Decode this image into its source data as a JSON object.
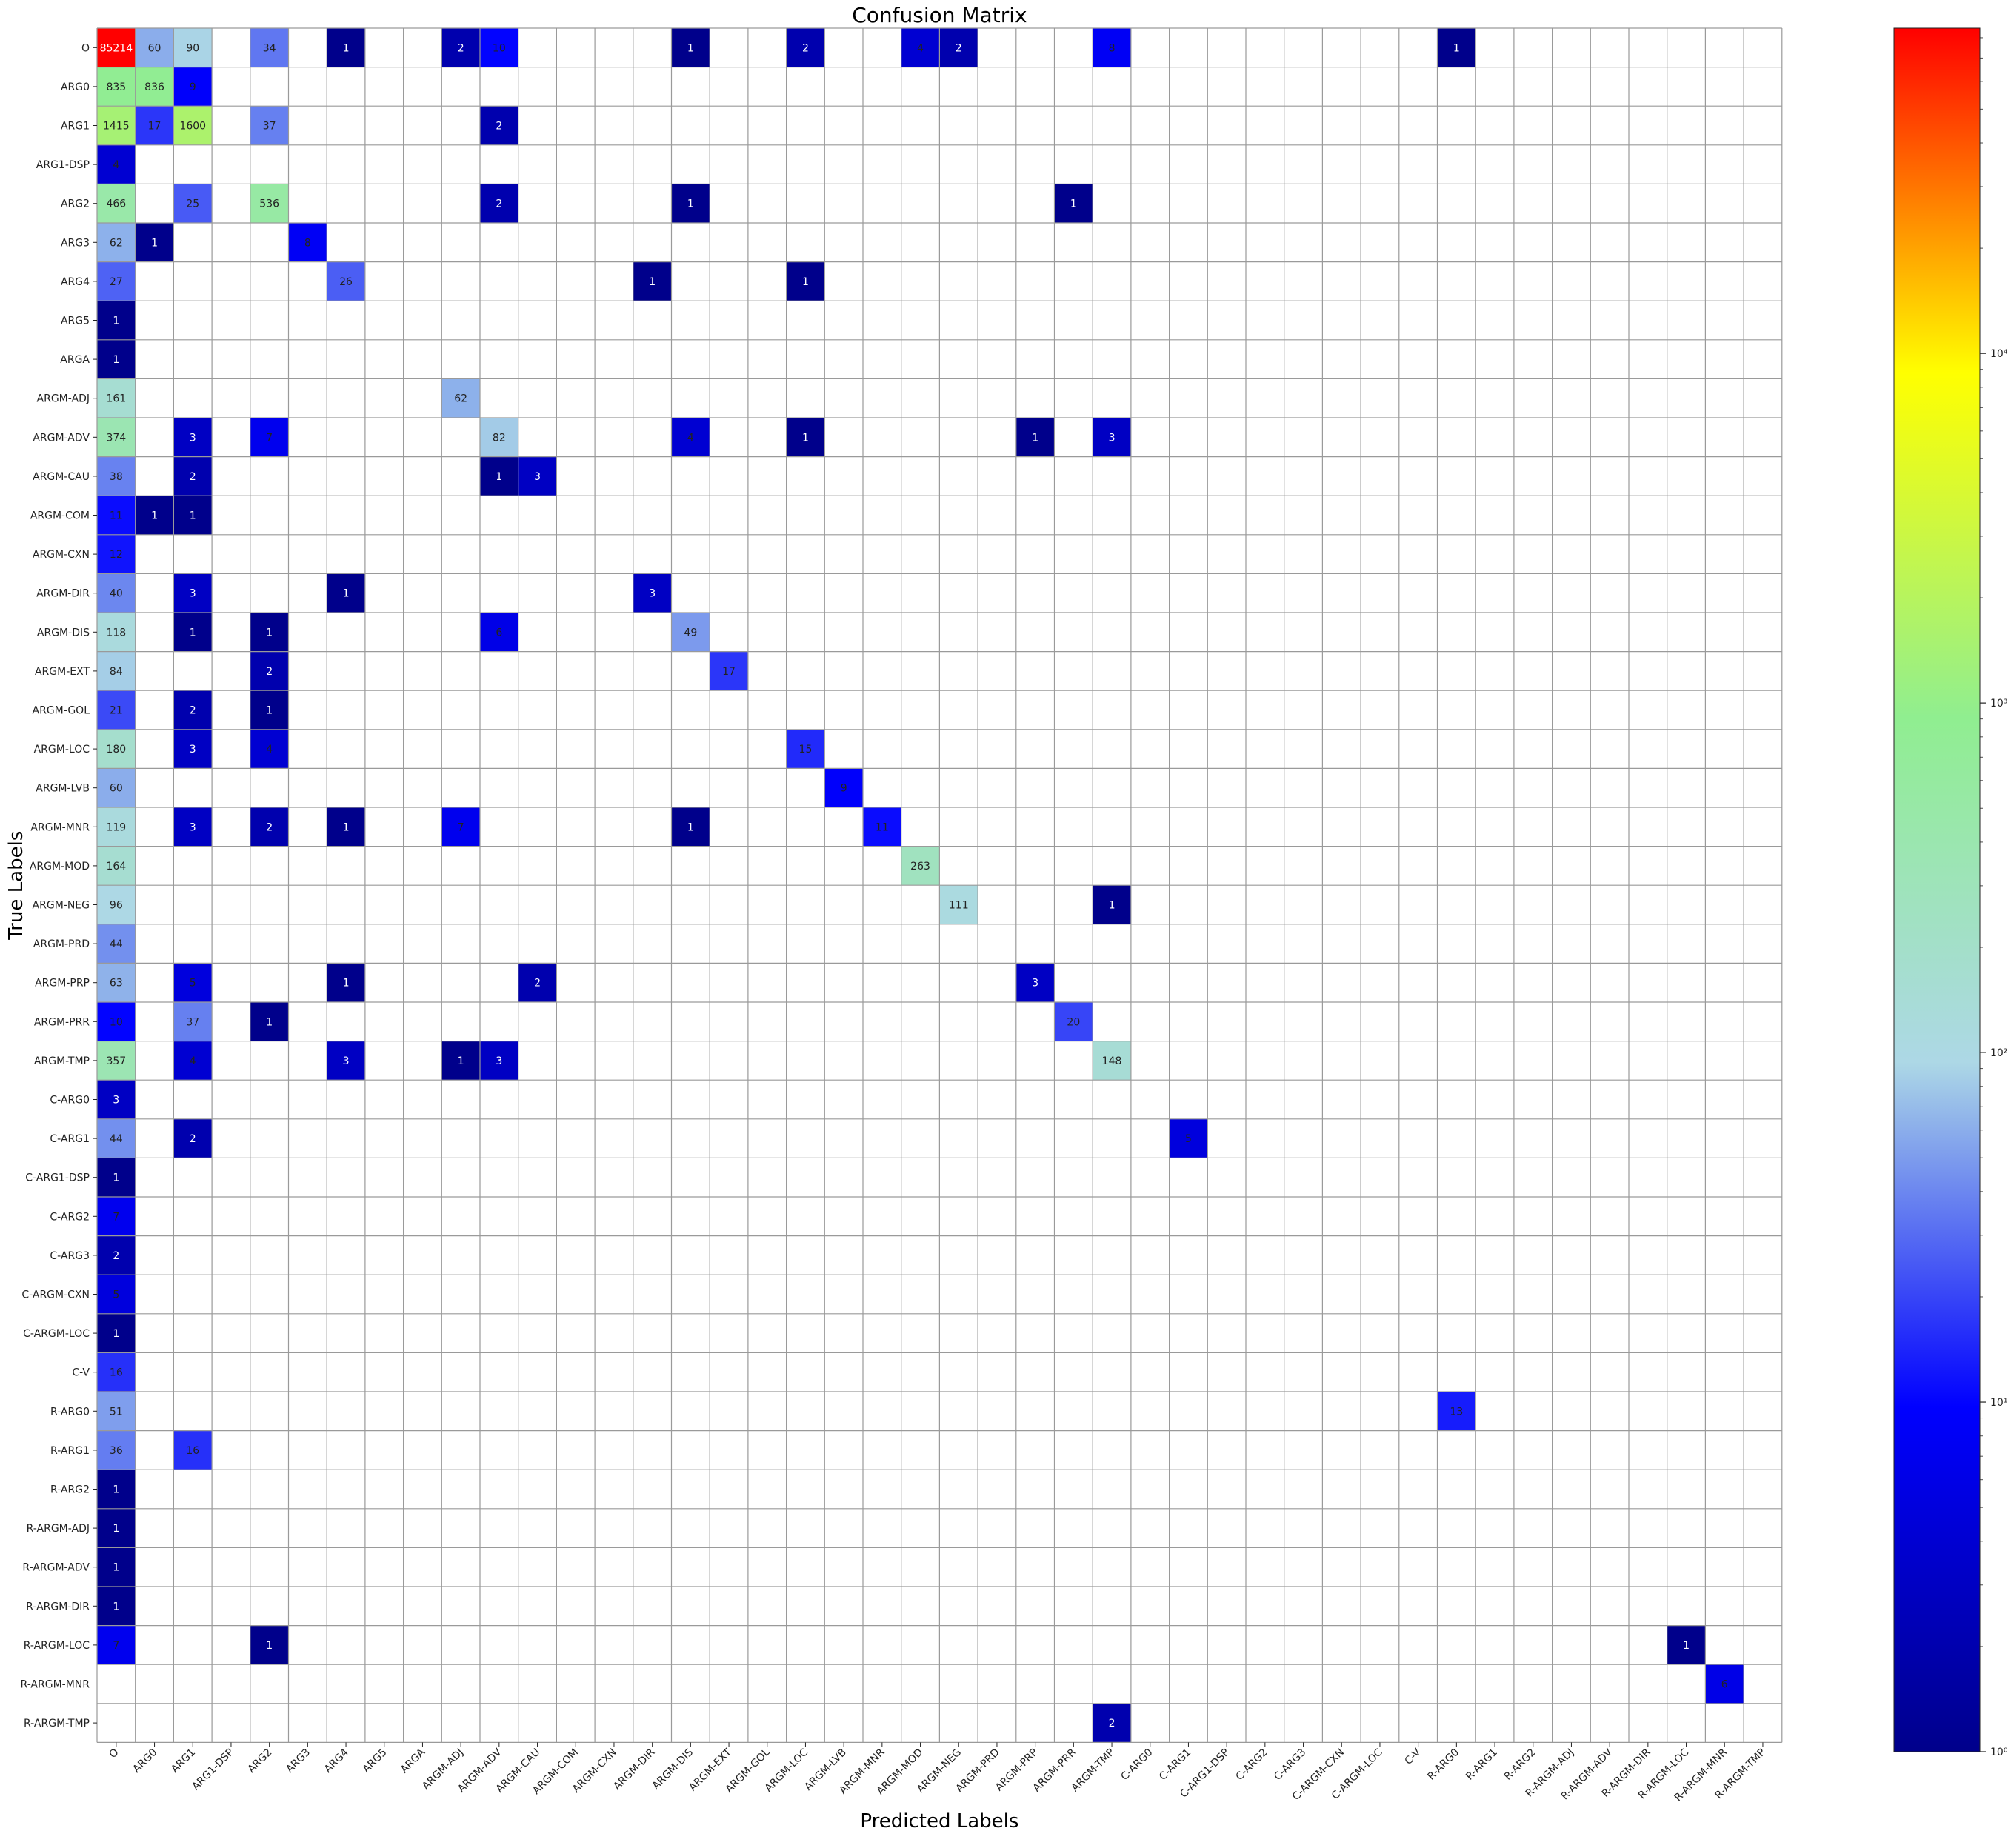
{
  "chart_data": {
    "type": "heatmap",
    "title": "Confusion Matrix",
    "xlabel": "Predicted Labels",
    "ylabel": "True Labels",
    "x_labels": [
      "O",
      "ARG0",
      "ARG1",
      "ARG1-DSP",
      "ARG2",
      "ARG3",
      "ARG4",
      "ARG5",
      "ARGA",
      "ARGM-ADJ",
      "ARGM-ADV",
      "ARGM-CAU",
      "ARGM-COM",
      "ARGM-CXN",
      "ARGM-DIR",
      "ARGM-DIS",
      "ARGM-EXT",
      "ARGM-GOL",
      "ARGM-LOC",
      "ARGM-LVB",
      "ARGM-MNR",
      "ARGM-MOD",
      "ARGM-NEG",
      "ARGM-PRD",
      "ARGM-PRP",
      "ARGM-PRR",
      "ARGM-TMP",
      "C-ARG0",
      "C-ARG1",
      "C-ARG1-DSP",
      "C-ARG2",
      "C-ARG3",
      "C-ARGM-CXN",
      "C-ARGM-LOC",
      "C-V",
      "R-ARG0",
      "R-ARG1",
      "R-ARG2",
      "R-ARGM-ADJ",
      "R-ARGM-ADV",
      "R-ARGM-DIR",
      "R-ARGM-LOC",
      "R-ARGM-MNR",
      "R-ARGM-TMP"
    ],
    "y_labels": [
      "O",
      "ARG0",
      "ARG1",
      "ARG1-DSP",
      "ARG2",
      "ARG3",
      "ARG4",
      "ARG5",
      "ARGA",
      "ARGM-ADJ",
      "ARGM-ADV",
      "ARGM-CAU",
      "ARGM-COM",
      "ARGM-CXN",
      "ARGM-DIR",
      "ARGM-DIS",
      "ARGM-EXT",
      "ARGM-GOL",
      "ARGM-LOC",
      "ARGM-LVB",
      "ARGM-MNR",
      "ARGM-MOD",
      "ARGM-NEG",
      "ARGM-PRD",
      "ARGM-PRP",
      "ARGM-PRR",
      "ARGM-TMP",
      "C-ARG0",
      "C-ARG1",
      "C-ARG1-DSP",
      "C-ARG2",
      "C-ARG3",
      "C-ARGM-CXN",
      "C-ARGM-LOC",
      "C-V",
      "R-ARG0",
      "R-ARG1",
      "R-ARG2",
      "R-ARGM-ADJ",
      "R-ARGM-ADV",
      "R-ARGM-DIR",
      "R-ARGM-LOC",
      "R-ARGM-MNR",
      "R-ARGM-TMP"
    ],
    "cells": [
      {
        "row": "O",
        "col": "O",
        "value": 85214
      },
      {
        "row": "O",
        "col": "ARG0",
        "value": 60
      },
      {
        "row": "O",
        "col": "ARG1",
        "value": 90
      },
      {
        "row": "O",
        "col": "ARG2",
        "value": 34
      },
      {
        "row": "O",
        "col": "ARG4",
        "value": 1
      },
      {
        "row": "O",
        "col": "ARGM-ADJ",
        "value": 2
      },
      {
        "row": "O",
        "col": "ARGM-ADV",
        "value": 10
      },
      {
        "row": "O",
        "col": "ARGM-DIS",
        "value": 1
      },
      {
        "row": "O",
        "col": "ARGM-LOC",
        "value": 2
      },
      {
        "row": "O",
        "col": "ARGM-MOD",
        "value": 4
      },
      {
        "row": "O",
        "col": "ARGM-NEG",
        "value": 2
      },
      {
        "row": "O",
        "col": "ARGM-TMP",
        "value": 8
      },
      {
        "row": "O",
        "col": "R-ARG0",
        "value": 1
      },
      {
        "row": "ARG0",
        "col": "O",
        "value": 835
      },
      {
        "row": "ARG0",
        "col": "ARG0",
        "value": 836
      },
      {
        "row": "ARG0",
        "col": "ARG1",
        "value": 9
      },
      {
        "row": "ARG1",
        "col": "O",
        "value": 1415
      },
      {
        "row": "ARG1",
        "col": "ARG0",
        "value": 17
      },
      {
        "row": "ARG1",
        "col": "ARG1",
        "value": 1600
      },
      {
        "row": "ARG1",
        "col": "ARG2",
        "value": 37
      },
      {
        "row": "ARG1",
        "col": "ARGM-ADV",
        "value": 2
      },
      {
        "row": "ARG1-DSP",
        "col": "O",
        "value": 4
      },
      {
        "row": "ARG2",
        "col": "O",
        "value": 466
      },
      {
        "row": "ARG2",
        "col": "ARG1",
        "value": 25
      },
      {
        "row": "ARG2",
        "col": "ARG2",
        "value": 536
      },
      {
        "row": "ARG2",
        "col": "ARGM-ADV",
        "value": 2
      },
      {
        "row": "ARG2",
        "col": "ARGM-DIS",
        "value": 1
      },
      {
        "row": "ARG2",
        "col": "ARGM-PRR",
        "value": 1
      },
      {
        "row": "ARG3",
        "col": "O",
        "value": 62
      },
      {
        "row": "ARG3",
        "col": "ARG0",
        "value": 1
      },
      {
        "row": "ARG3",
        "col": "ARG3",
        "value": 8
      },
      {
        "row": "ARG4",
        "col": "O",
        "value": 27
      },
      {
        "row": "ARG4",
        "col": "ARG4",
        "value": 26
      },
      {
        "row": "ARG4",
        "col": "ARGM-DIR",
        "value": 1
      },
      {
        "row": "ARG4",
        "col": "ARGM-LOC",
        "value": 1
      },
      {
        "row": "ARG5",
        "col": "O",
        "value": 1
      },
      {
        "row": "ARGA",
        "col": "O",
        "value": 1
      },
      {
        "row": "ARGM-ADJ",
        "col": "O",
        "value": 161
      },
      {
        "row": "ARGM-ADJ",
        "col": "ARGM-ADJ",
        "value": 62
      },
      {
        "row": "ARGM-ADV",
        "col": "O",
        "value": 374
      },
      {
        "row": "ARGM-ADV",
        "col": "ARG1",
        "value": 3
      },
      {
        "row": "ARGM-ADV",
        "col": "ARG2",
        "value": 7
      },
      {
        "row": "ARGM-ADV",
        "col": "ARGM-ADV",
        "value": 82
      },
      {
        "row": "ARGM-ADV",
        "col": "ARGM-DIS",
        "value": 4
      },
      {
        "row": "ARGM-ADV",
        "col": "ARGM-LOC",
        "value": 1
      },
      {
        "row": "ARGM-ADV",
        "col": "ARGM-PRP",
        "value": 1
      },
      {
        "row": "ARGM-ADV",
        "col": "ARGM-TMP",
        "value": 3
      },
      {
        "row": "ARGM-CAU",
        "col": "O",
        "value": 38
      },
      {
        "row": "ARGM-CAU",
        "col": "ARG1",
        "value": 2
      },
      {
        "row": "ARGM-CAU",
        "col": "ARGM-ADV",
        "value": 1
      },
      {
        "row": "ARGM-CAU",
        "col": "ARGM-CAU",
        "value": 3
      },
      {
        "row": "ARGM-COM",
        "col": "O",
        "value": 11
      },
      {
        "row": "ARGM-COM",
        "col": "ARG0",
        "value": 1
      },
      {
        "row": "ARGM-COM",
        "col": "ARG1",
        "value": 1
      },
      {
        "row": "ARGM-CXN",
        "col": "O",
        "value": 12
      },
      {
        "row": "ARGM-DIR",
        "col": "O",
        "value": 40
      },
      {
        "row": "ARGM-DIR",
        "col": "ARG1",
        "value": 3
      },
      {
        "row": "ARGM-DIR",
        "col": "ARG4",
        "value": 1
      },
      {
        "row": "ARGM-DIR",
        "col": "ARGM-DIR",
        "value": 3
      },
      {
        "row": "ARGM-DIS",
        "col": "O",
        "value": 118
      },
      {
        "row": "ARGM-DIS",
        "col": "ARG1",
        "value": 1
      },
      {
        "row": "ARGM-DIS",
        "col": "ARG2",
        "value": 1
      },
      {
        "row": "ARGM-DIS",
        "col": "ARGM-ADV",
        "value": 6
      },
      {
        "row": "ARGM-DIS",
        "col": "ARGM-DIS",
        "value": 49
      },
      {
        "row": "ARGM-EXT",
        "col": "O",
        "value": 84
      },
      {
        "row": "ARGM-EXT",
        "col": "ARG2",
        "value": 2
      },
      {
        "row": "ARGM-EXT",
        "col": "ARGM-EXT",
        "value": 17
      },
      {
        "row": "ARGM-GOL",
        "col": "O",
        "value": 21
      },
      {
        "row": "ARGM-GOL",
        "col": "ARG1",
        "value": 2
      },
      {
        "row": "ARGM-GOL",
        "col": "ARG2",
        "value": 1
      },
      {
        "row": "ARGM-LOC",
        "col": "O",
        "value": 180
      },
      {
        "row": "ARGM-LOC",
        "col": "ARG1",
        "value": 3
      },
      {
        "row": "ARGM-LOC",
        "col": "ARG2",
        "value": 4
      },
      {
        "row": "ARGM-LOC",
        "col": "ARGM-LOC",
        "value": 15
      },
      {
        "row": "ARGM-LVB",
        "col": "O",
        "value": 60
      },
      {
        "row": "ARGM-LVB",
        "col": "ARGM-LVB",
        "value": 9
      },
      {
        "row": "ARGM-MNR",
        "col": "O",
        "value": 119
      },
      {
        "row": "ARGM-MNR",
        "col": "ARG1",
        "value": 3
      },
      {
        "row": "ARGM-MNR",
        "col": "ARG2",
        "value": 2
      },
      {
        "row": "ARGM-MNR",
        "col": "ARG4",
        "value": 1
      },
      {
        "row": "ARGM-MNR",
        "col": "ARGM-ADJ",
        "value": 7
      },
      {
        "row": "ARGM-MNR",
        "col": "ARGM-DIS",
        "value": 1
      },
      {
        "row": "ARGM-MNR",
        "col": "ARGM-MNR",
        "value": 11
      },
      {
        "row": "ARGM-MOD",
        "col": "O",
        "value": 164
      },
      {
        "row": "ARGM-MOD",
        "col": "ARGM-MOD",
        "value": 263
      },
      {
        "row": "ARGM-NEG",
        "col": "O",
        "value": 96
      },
      {
        "row": "ARGM-NEG",
        "col": "ARGM-NEG",
        "value": 111
      },
      {
        "row": "ARGM-NEG",
        "col": "ARGM-TMP",
        "value": 1
      },
      {
        "row": "ARGM-PRD",
        "col": "O",
        "value": 44
      },
      {
        "row": "ARGM-PRP",
        "col": "O",
        "value": 63
      },
      {
        "row": "ARGM-PRP",
        "col": "ARG1",
        "value": 5
      },
      {
        "row": "ARGM-PRP",
        "col": "ARG4",
        "value": 1
      },
      {
        "row": "ARGM-PRP",
        "col": "ARGM-CAU",
        "value": 2
      },
      {
        "row": "ARGM-PRP",
        "col": "ARGM-PRP",
        "value": 3
      },
      {
        "row": "ARGM-PRR",
        "col": "O",
        "value": 10
      },
      {
        "row": "ARGM-PRR",
        "col": "ARG1",
        "value": 37
      },
      {
        "row": "ARGM-PRR",
        "col": "ARG2",
        "value": 1
      },
      {
        "row": "ARGM-PRR",
        "col": "ARGM-PRR",
        "value": 20
      },
      {
        "row": "ARGM-TMP",
        "col": "O",
        "value": 357
      },
      {
        "row": "ARGM-TMP",
        "col": "ARG1",
        "value": 4
      },
      {
        "row": "ARGM-TMP",
        "col": "ARG4",
        "value": 3
      },
      {
        "row": "ARGM-TMP",
        "col": "ARGM-ADJ",
        "value": 1
      },
      {
        "row": "ARGM-TMP",
        "col": "ARGM-ADV",
        "value": 3
      },
      {
        "row": "ARGM-TMP",
        "col": "ARGM-TMP",
        "value": 148
      },
      {
        "row": "C-ARG0",
        "col": "O",
        "value": 3
      },
      {
        "row": "C-ARG1",
        "col": "O",
        "value": 44
      },
      {
        "row": "C-ARG1",
        "col": "ARG1",
        "value": 2
      },
      {
        "row": "C-ARG1",
        "col": "C-ARG1",
        "value": 5
      },
      {
        "row": "C-ARG1-DSP",
        "col": "O",
        "value": 1
      },
      {
        "row": "C-ARG2",
        "col": "O",
        "value": 7
      },
      {
        "row": "C-ARG3",
        "col": "O",
        "value": 2
      },
      {
        "row": "C-ARGM-CXN",
        "col": "O",
        "value": 5
      },
      {
        "row": "C-ARGM-LOC",
        "col": "O",
        "value": 1
      },
      {
        "row": "C-V",
        "col": "O",
        "value": 16
      },
      {
        "row": "R-ARG0",
        "col": "O",
        "value": 51
      },
      {
        "row": "R-ARG0",
        "col": "R-ARG0",
        "value": 13
      },
      {
        "row": "R-ARG1",
        "col": "O",
        "value": 36
      },
      {
        "row": "R-ARG1",
        "col": "ARG1",
        "value": 16
      },
      {
        "row": "R-ARG2",
        "col": "O",
        "value": 1
      },
      {
        "row": "R-ARGM-ADJ",
        "col": "O",
        "value": 1
      },
      {
        "row": "R-ARGM-ADV",
        "col": "O",
        "value": 1
      },
      {
        "row": "R-ARGM-DIR",
        "col": "O",
        "value": 1
      },
      {
        "row": "R-ARGM-LOC",
        "col": "O",
        "value": 7
      },
      {
        "row": "R-ARGM-LOC",
        "col": "ARG2",
        "value": 1
      },
      {
        "row": "R-ARGM-LOC",
        "col": "R-ARGM-LOC",
        "value": 1
      },
      {
        "row": "R-ARGM-MNR",
        "col": "R-ARGM-MNR",
        "value": 6
      },
      {
        "row": "R-ARGM-TMP",
        "col": "ARGM-TMP",
        "value": 2
      }
    ],
    "colorbar": {
      "scale": "log",
      "min": 1,
      "max": 85214,
      "tick_values": [
        1,
        10,
        100,
        1000,
        10000
      ],
      "tick_labels": [
        "10⁰",
        "10¹",
        "10²",
        "10³",
        "10⁴"
      ],
      "colors": [
        "#00008b",
        "#0000ff",
        "#add8e6",
        "#90ee90",
        "#ffff00",
        "#ff0000"
      ]
    },
    "grid": true,
    "legend": "colorbar-right"
  }
}
